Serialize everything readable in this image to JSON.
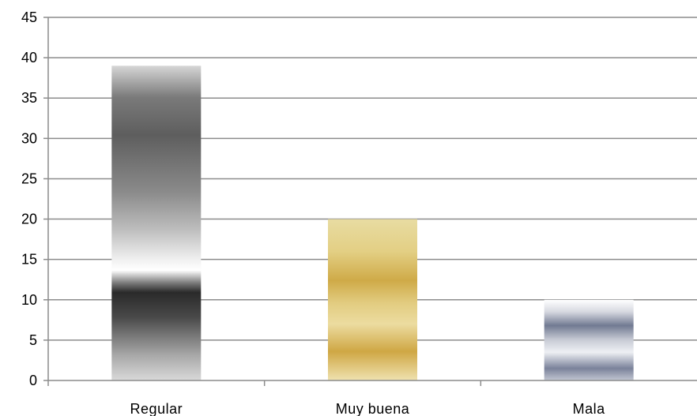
{
  "chart_data": {
    "type": "bar",
    "categories": [
      "Regular",
      "Muy buena",
      "Mala"
    ],
    "values": [
      39,
      20,
      10
    ],
    "ylim": [
      0,
      45
    ],
    "yticks": [
      0,
      5,
      10,
      15,
      20,
      25,
      30,
      35,
      40,
      45
    ],
    "grid": true,
    "title": "",
    "xlabel": "",
    "ylabel": "",
    "bar_styles": [
      "chrome-gray",
      "gold",
      "silver-blue"
    ]
  }
}
